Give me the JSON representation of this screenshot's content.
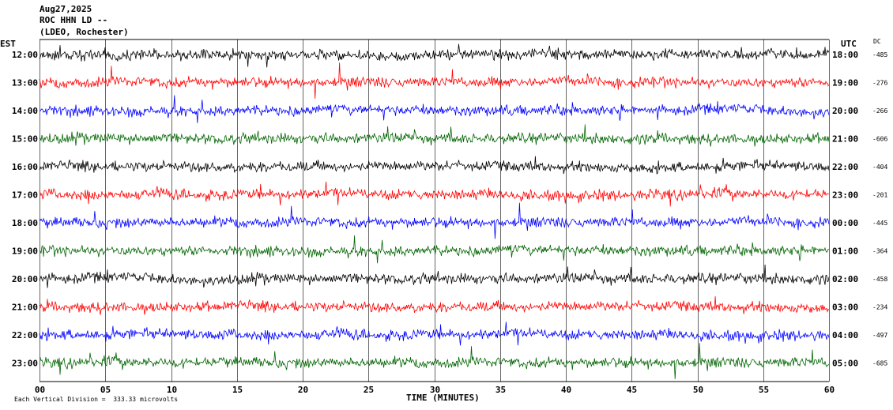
{
  "header": {
    "date": "Aug27,2025",
    "station": "ROC HHN LD --",
    "network": "(LDEO, Rochester)"
  },
  "left_axis_label": "EST",
  "right_axis_label": "UTC",
  "dc_label": "DC",
  "footer": {
    "scale_note": "Each Vertical Division =  333.33 microvolts"
  },
  "chart_data": {
    "type": "line",
    "title": "",
    "xlabel": "TIME (MINUTES)",
    "xlim": [
      0,
      60
    ],
    "x_ticks": [
      "00",
      "05",
      "10",
      "15",
      "20",
      "25",
      "30",
      "35",
      "40",
      "45",
      "50",
      "55",
      "60"
    ],
    "grid": "vertical lines every 5 minutes",
    "rows": [
      {
        "est": "12:00",
        "utc": "18:00",
        "dc": "-485",
        "color": "#000000"
      },
      {
        "est": "13:00",
        "utc": "19:00",
        "dc": "-276",
        "color": "#ff0000"
      },
      {
        "est": "14:00",
        "utc": "20:00",
        "dc": "-266",
        "color": "#0000ff"
      },
      {
        "est": "15:00",
        "utc": "21:00",
        "dc": "-606",
        "color": "#006400"
      },
      {
        "est": "16:00",
        "utc": "22:00",
        "dc": "-404",
        "color": "#000000"
      },
      {
        "est": "17:00",
        "utc": "23:00",
        "dc": "-201",
        "color": "#ff0000"
      },
      {
        "est": "18:00",
        "utc": "00:00",
        "dc": "-445",
        "color": "#0000ff"
      },
      {
        "est": "19:00",
        "utc": "01:00",
        "dc": "-364",
        "color": "#006400"
      },
      {
        "est": "20:00",
        "utc": "02:00",
        "dc": "-458",
        "color": "#000000"
      },
      {
        "est": "21:00",
        "utc": "03:00",
        "dc": "-234",
        "color": "#ff0000"
      },
      {
        "est": "22:00",
        "utc": "04:00",
        "dc": "-497",
        "color": "#0000ff"
      },
      {
        "est": "23:00",
        "utc": "05:00",
        "dc": "-685",
        "color": "#006400"
      }
    ]
  }
}
